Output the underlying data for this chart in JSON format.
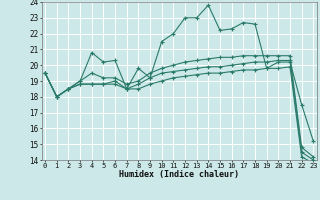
{
  "xlabel": "Humidex (Indice chaleur)",
  "bg_color": "#cce8e8",
  "grid_color": "#ffffff",
  "line_color": "#2a7a6a",
  "series": [
    {
      "x": [
        0,
        1,
        2,
        3,
        4,
        5,
        6,
        7,
        8,
        9,
        10,
        11,
        12,
        13,
        14,
        15,
        16,
        17,
        18,
        19,
        20,
        21,
        22,
        23
      ],
      "y": [
        19.5,
        18.0,
        18.5,
        19.0,
        20.8,
        20.2,
        20.3,
        18.5,
        19.8,
        19.2,
        21.5,
        22.0,
        23.0,
        23.0,
        23.8,
        22.2,
        22.3,
        22.7,
        22.6,
        19.8,
        20.2,
        20.2,
        17.5,
        15.2
      ]
    },
    {
      "x": [
        0,
        1,
        2,
        3,
        4,
        5,
        6,
        7,
        8,
        9,
        10,
        11,
        12,
        13,
        14,
        15,
        16,
        17,
        18,
        19,
        20,
        21,
        22,
        23
      ],
      "y": [
        19.5,
        18.0,
        18.5,
        18.8,
        18.8,
        18.8,
        18.8,
        18.5,
        18.5,
        18.8,
        19.0,
        19.2,
        19.3,
        19.4,
        19.5,
        19.5,
        19.6,
        19.7,
        19.7,
        19.8,
        19.8,
        19.9,
        14.2,
        13.8
      ]
    },
    {
      "x": [
        0,
        1,
        2,
        3,
        4,
        5,
        6,
        7,
        8,
        9,
        10,
        11,
        12,
        13,
        14,
        15,
        16,
        17,
        18,
        19,
        20,
        21,
        22,
        23
      ],
      "y": [
        19.5,
        18.0,
        18.5,
        18.8,
        18.8,
        18.8,
        19.0,
        18.5,
        18.8,
        19.2,
        19.5,
        19.6,
        19.7,
        19.8,
        19.9,
        19.9,
        20.0,
        20.1,
        20.2,
        20.2,
        20.3,
        20.3,
        14.5,
        14.0
      ]
    },
    {
      "x": [
        0,
        1,
        2,
        3,
        4,
        5,
        6,
        7,
        8,
        9,
        10,
        11,
        12,
        13,
        14,
        15,
        16,
        17,
        18,
        19,
        20,
        21,
        22,
        23
      ],
      "y": [
        19.5,
        18.0,
        18.5,
        19.0,
        19.5,
        19.2,
        19.2,
        18.8,
        19.0,
        19.5,
        19.8,
        20.0,
        20.2,
        20.3,
        20.4,
        20.5,
        20.5,
        20.6,
        20.6,
        20.6,
        20.6,
        20.6,
        14.8,
        14.2
      ]
    }
  ],
  "xlim": [
    -0.3,
    23.3
  ],
  "ylim": [
    14,
    24
  ],
  "yticks": [
    14,
    15,
    16,
    17,
    18,
    19,
    20,
    21,
    22,
    23,
    24
  ],
  "xticks": [
    0,
    1,
    2,
    3,
    4,
    5,
    6,
    7,
    8,
    9,
    10,
    11,
    12,
    13,
    14,
    15,
    16,
    17,
    18,
    19,
    20,
    21,
    22,
    23
  ]
}
